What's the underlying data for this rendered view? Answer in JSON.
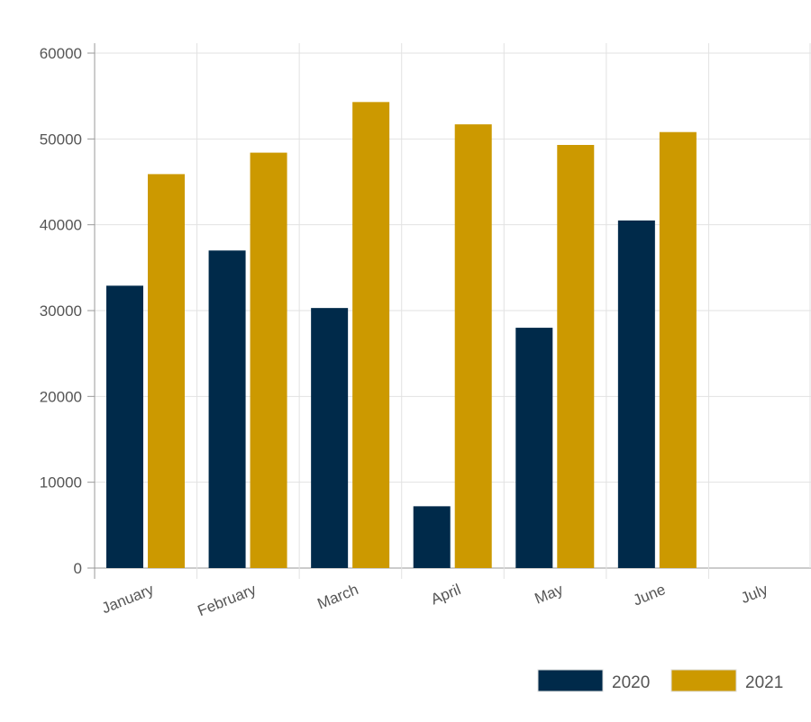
{
  "chart_data": {
    "type": "bar",
    "categories": [
      "January",
      "February",
      "March",
      "April",
      "May",
      "June",
      "July"
    ],
    "series": [
      {
        "name": "2020",
        "color": "#002a4a",
        "values": [
          32900,
          37000,
          30300,
          7200,
          28000,
          40500,
          null
        ]
      },
      {
        "name": "2021",
        "color": "#cc9900",
        "values": [
          45900,
          48400,
          54300,
          51700,
          49300,
          50800,
          null
        ]
      }
    ],
    "yticks": [
      "0",
      "10000",
      "20000",
      "30000",
      "40000",
      "50000",
      "60000"
    ],
    "ylim": [
      0,
      60000
    ],
    "grid": true,
    "legend": "bottom-right",
    "title": "",
    "xlabel": "",
    "ylabel": ""
  }
}
